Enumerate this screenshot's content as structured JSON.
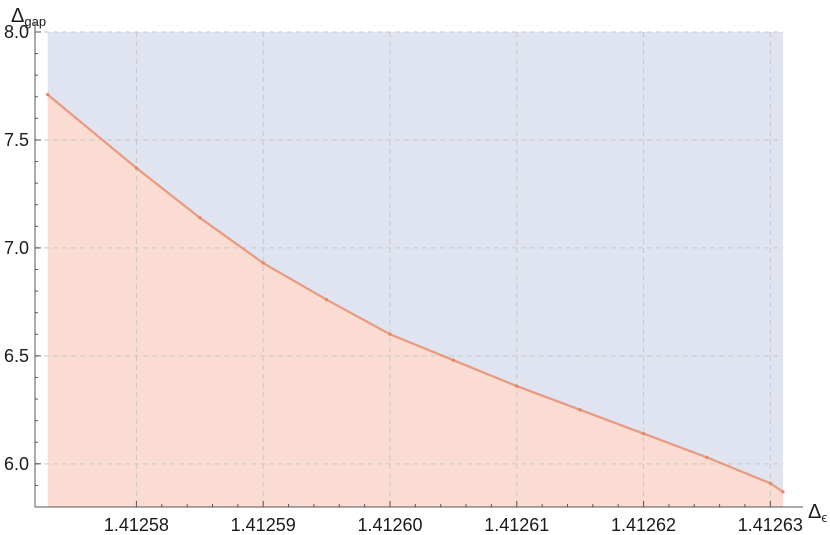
{
  "chart_data": {
    "type": "area",
    "xlabel": "Δ",
    "xlabel_sub": "ϵ",
    "ylabel": "Δ",
    "ylabel_sub": "gap",
    "xlim": [
      1.412572,
      1.412631
    ],
    "ylim": [
      5.8,
      8.0
    ],
    "x_ticks": [
      1.41258,
      1.41259,
      1.4126,
      1.41261,
      1.41262,
      1.41263
    ],
    "x_tick_labels": [
      "1.41258",
      "1.41259",
      "1.41260",
      "1.41261",
      "1.41262",
      "1.41263"
    ],
    "y_ticks": [
      6.0,
      6.5,
      7.0,
      7.5,
      8.0
    ],
    "y_tick_labels": [
      "6.0",
      "6.5",
      "7.0",
      "7.5",
      "8.0"
    ],
    "grid": true,
    "colors": {
      "allowed_region": "#dfe4f0",
      "excluded_region": "#fbdcd2",
      "boundary_line": "#e8825f",
      "grid": "#c8c8c8",
      "axis": "#555555"
    },
    "boundary": {
      "x": [
        1.412573,
        1.41258,
        1.412585,
        1.41259,
        1.412595,
        1.4126,
        1.412605,
        1.41261,
        1.412615,
        1.41262,
        1.412625,
        1.41263,
        1.412631
      ],
      "y": [
        7.71,
        7.37,
        7.14,
        6.93,
        6.76,
        6.6,
        6.48,
        6.36,
        6.25,
        6.14,
        6.03,
        5.91,
        5.87
      ]
    }
  }
}
